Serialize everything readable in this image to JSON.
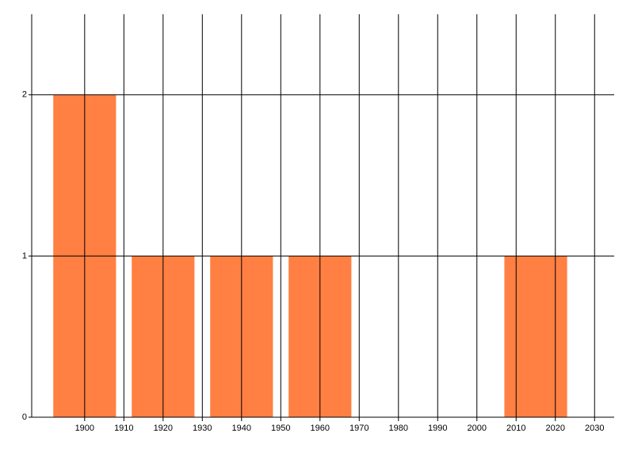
{
  "chart_data": {
    "type": "bar",
    "x": [
      1900,
      1920,
      1940,
      1960,
      2015
    ],
    "values": [
      2,
      1,
      1,
      1,
      1
    ],
    "color": "#ff8042",
    "xlim": [
      1886.5,
      2035
    ],
    "xticks": [
      1900,
      1910,
      1920,
      1930,
      1940,
      1950,
      1960,
      1970,
      1980,
      1990,
      2000,
      2010,
      2020,
      2030
    ],
    "ylim": [
      0,
      2.5
    ],
    "yticks": [
      0,
      1,
      2
    ],
    "grid": true
  }
}
